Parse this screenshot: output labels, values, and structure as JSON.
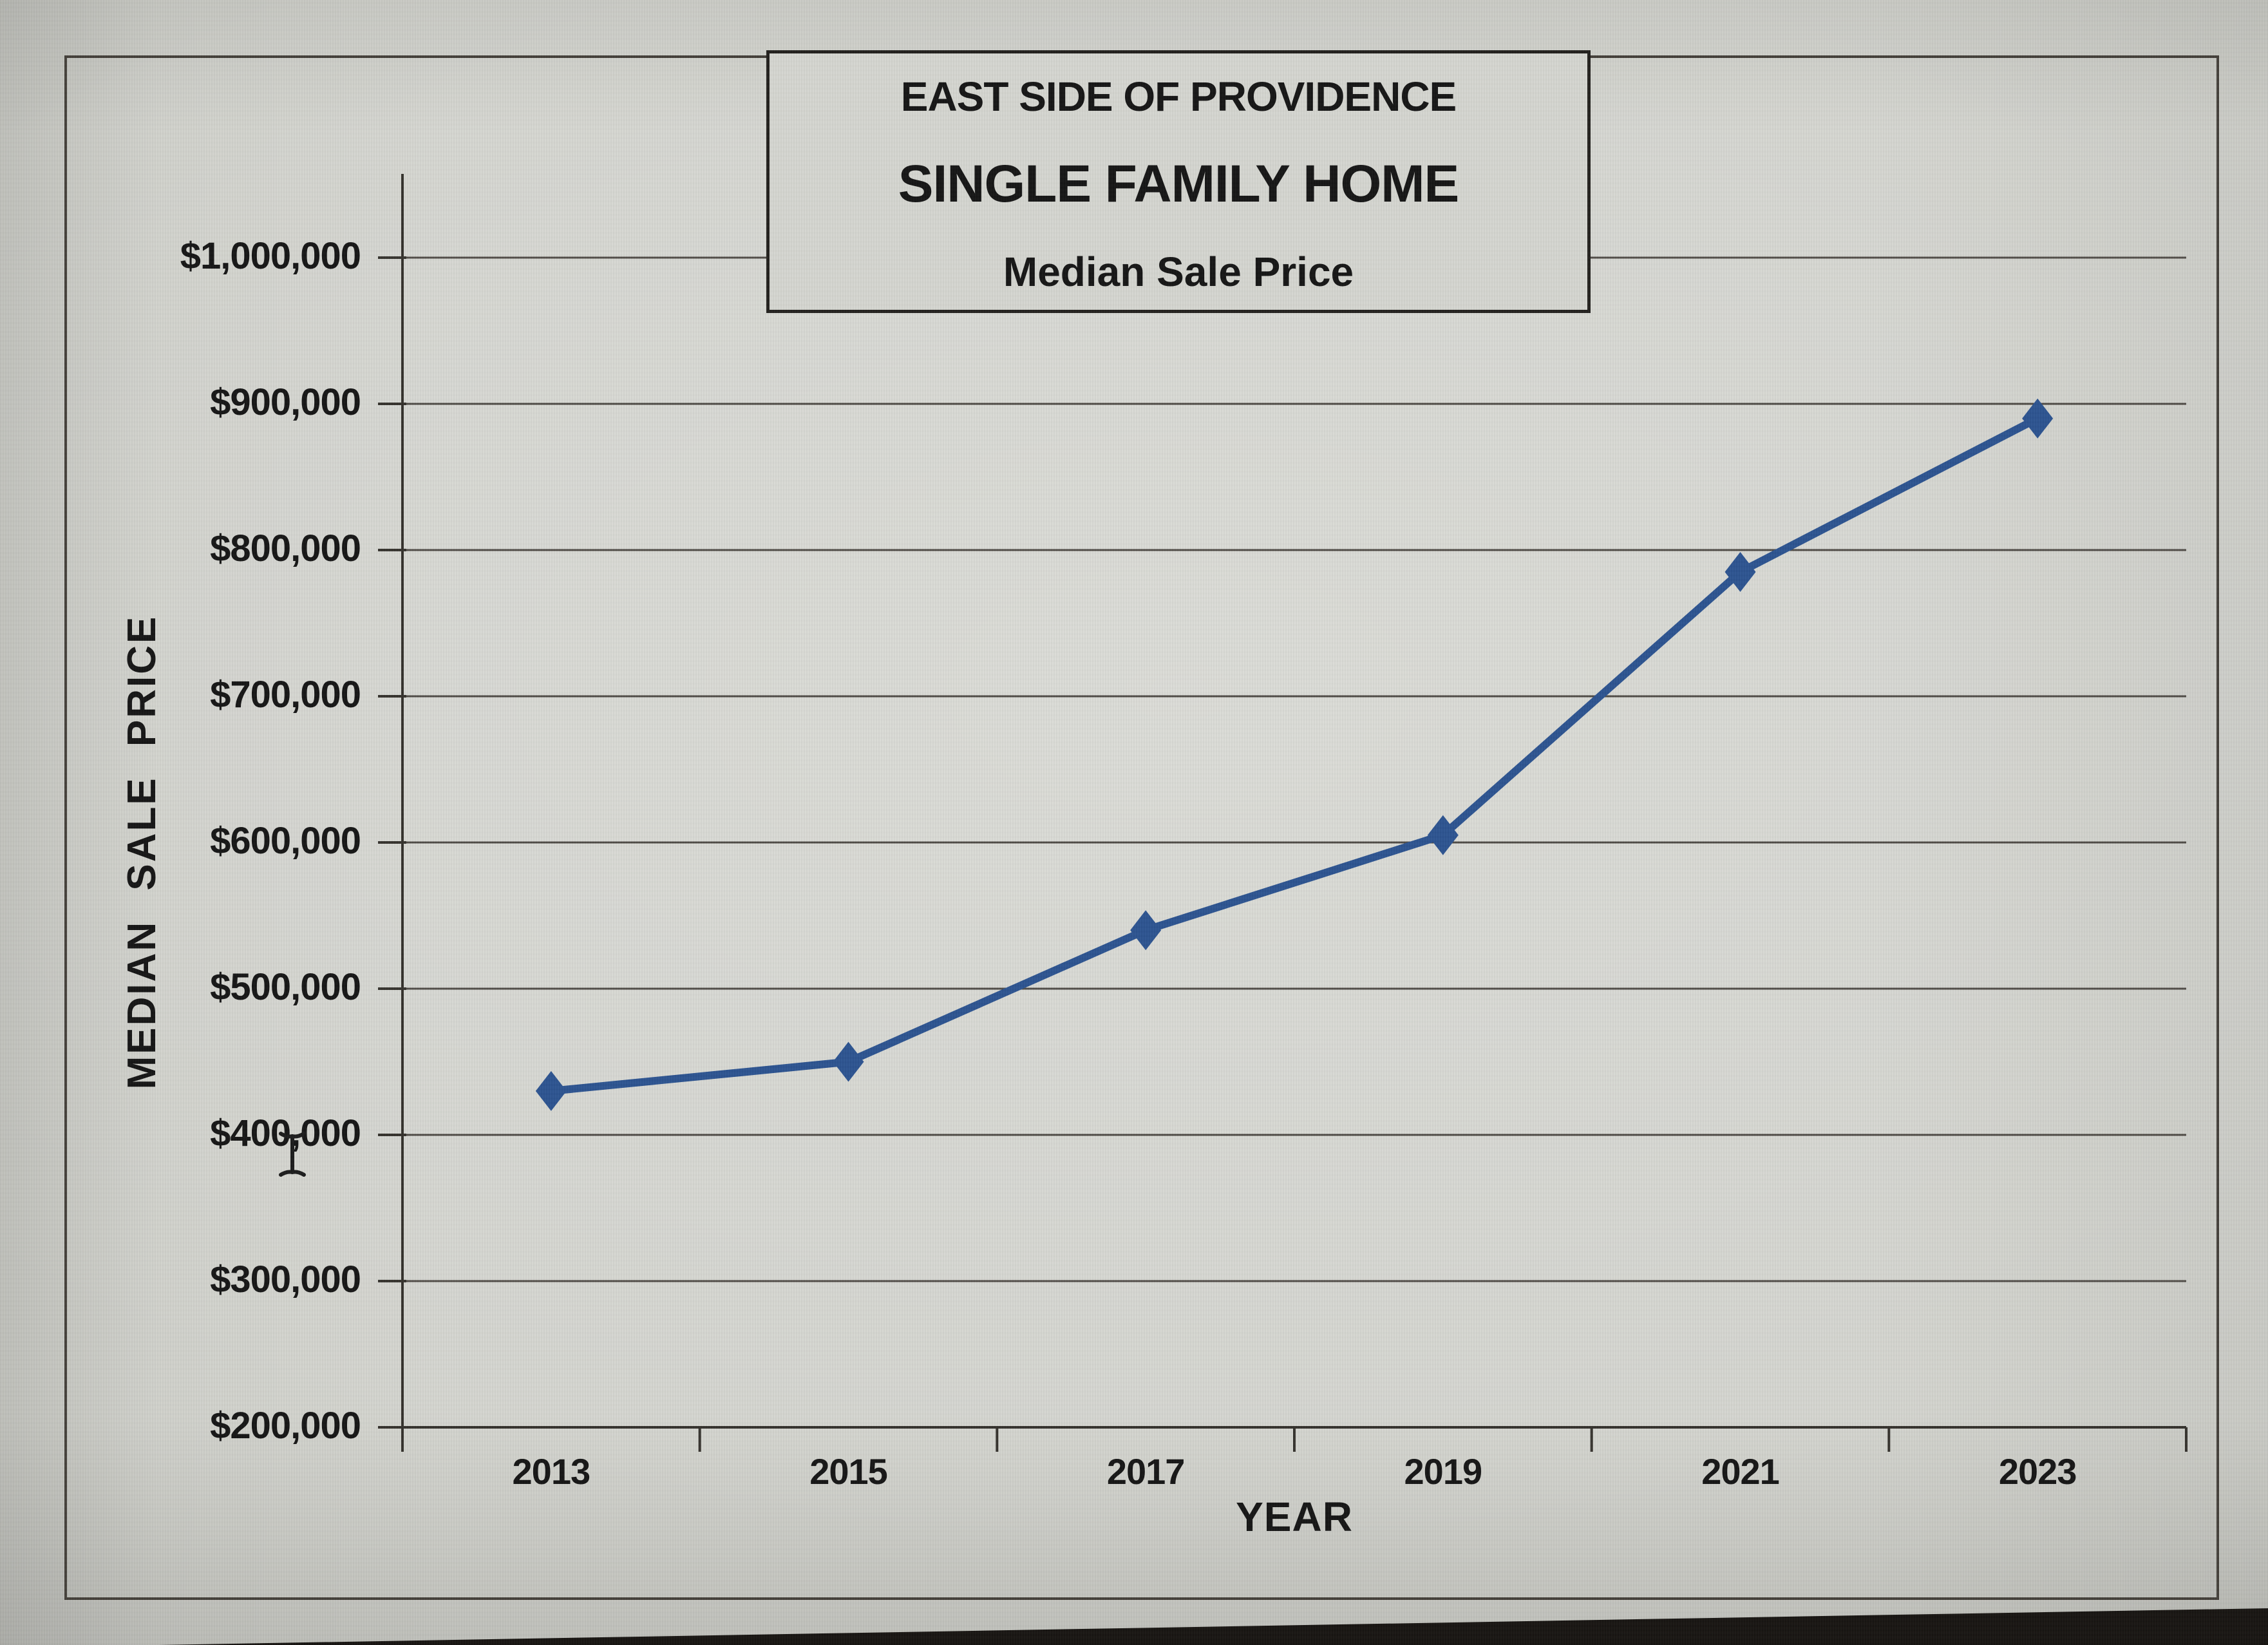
{
  "chart_data": {
    "type": "line",
    "title_lines": [
      "EAST SIDE OF PROVIDENCE",
      "SINGLE FAMILY HOME",
      "Median Sale Price"
    ],
    "xlabel": "YEAR",
    "ylabel": "MEDIAN SALE PRICE",
    "categories": [
      "2013",
      "2015",
      "2017",
      "2019",
      "2021",
      "2023"
    ],
    "series": [
      {
        "name": "Median Sale Price",
        "values": [
          430000,
          450000,
          540000,
          605000,
          785000,
          890000
        ]
      }
    ],
    "ylim": [
      200000,
      1000000
    ],
    "ytick_step": 100000,
    "ytick_labels": [
      "$200,000",
      "$300,000",
      "$400,000",
      "$500,000",
      "$600,000",
      "$700,000",
      "$800,000",
      "$900,000",
      "$1,000,000"
    ],
    "grid": true,
    "legend": "none",
    "marker": "diamond",
    "line_color": "#2d5491"
  },
  "cursor": {
    "type": "text-ibeam",
    "color": "#1c1c1c"
  },
  "colors": {
    "background": "#d4d5cf",
    "gridline": "#4f4b46",
    "axis": "#36332e",
    "text": "#161616",
    "border": "#45413b",
    "screen_edge": "#181512"
  }
}
